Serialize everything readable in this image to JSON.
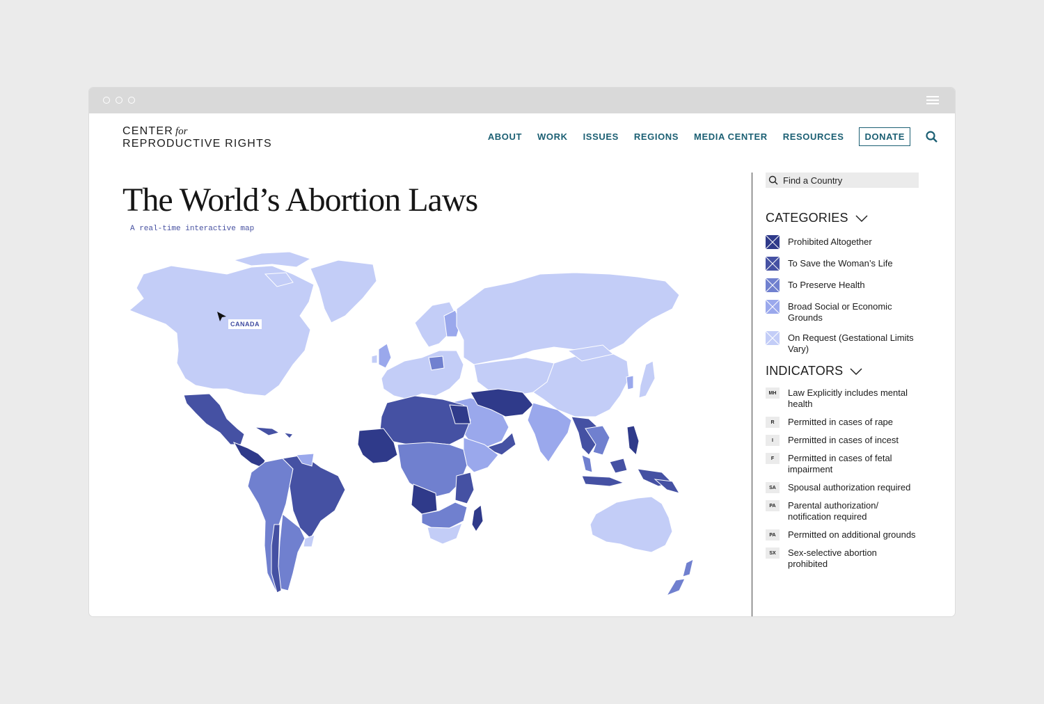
{
  "chrome": {
    "menu_icon": "hamburger-icon"
  },
  "logo": {
    "line1": "CENTER",
    "for": "for",
    "line2": "REPRODUCTIVE RIGHTS"
  },
  "nav": {
    "items": [
      "ABOUT",
      "WORK",
      "ISSUES",
      "REGIONS",
      "MEDIA CENTER",
      "RESOURCES"
    ],
    "donate": "DONATE",
    "search_icon": "search-icon"
  },
  "page": {
    "title": "The World’s Abortion Laws",
    "subtitle": "A real-time interactive map"
  },
  "map": {
    "hover_label": "CANADA",
    "colors": {
      "prohibited": "#2f3a8a",
      "save_life": "#4551a3",
      "preserve_health": "#7080cf",
      "broad_social": "#9aa8ec",
      "on_request": "#c3cdf7"
    }
  },
  "sidebar": {
    "search": {
      "placeholder": "Find a Country"
    },
    "categories": {
      "heading": "CATEGORIES",
      "items": [
        {
          "label": "Prohibited Altogether",
          "color": "#2f3a8a"
        },
        {
          "label": "To Save the Woman’s Life",
          "color": "#4551a3"
        },
        {
          "label": "To Preserve Health",
          "color": "#7080cf"
        },
        {
          "label": "Broad Social or Economic Grounds",
          "color": "#9aa8ec"
        },
        {
          "label": "On Request (Gestational Limits Vary)",
          "color": "#c3cdf7"
        }
      ]
    },
    "indicators": {
      "heading": "INDICATORS",
      "items": [
        {
          "code": "MH",
          "label": "Law Explicitly includes mental health"
        },
        {
          "code": "R",
          "label": "Permitted in cases of rape"
        },
        {
          "code": "I",
          "label": "Permitted in cases of incest"
        },
        {
          "code": "F",
          "label": "Permitted in cases of fetal impairment"
        },
        {
          "code": "SA",
          "label": "Spousal authorization required"
        },
        {
          "code": "PA",
          "label": "Parental authorization/ notification required"
        },
        {
          "code": "PA",
          "label": "Permitted on additional grounds"
        },
        {
          "code": "SX",
          "label": "Sex-selective abortion prohibited"
        }
      ]
    }
  }
}
